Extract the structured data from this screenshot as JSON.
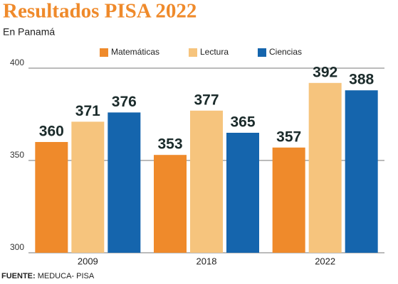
{
  "chart_data": {
    "type": "bar",
    "title": "Resultados PISA 2022",
    "subtitle": "En Panamá",
    "categories": [
      "2009",
      "2018",
      "2022"
    ],
    "series": [
      {
        "name": "Matemáticas",
        "color": "#ef8a2b",
        "values": [
          360,
          353,
          357
        ]
      },
      {
        "name": "Lectura",
        "color": "#f6c47d",
        "values": [
          371,
          377,
          392
        ]
      },
      {
        "name": "Ciencias",
        "color": "#1565ad",
        "values": [
          376,
          365,
          388
        ]
      }
    ],
    "ylim": [
      300,
      400
    ],
    "yticks": [
      300,
      350,
      400
    ],
    "grid": true,
    "source_label": "FUENTE:",
    "source": "MEDUCA- PISA"
  }
}
